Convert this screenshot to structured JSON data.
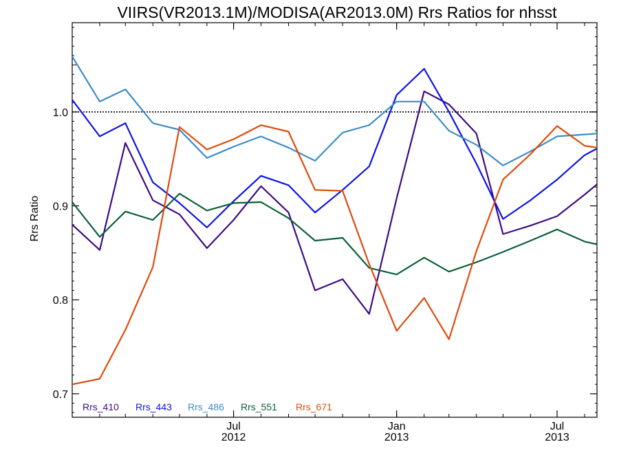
{
  "chart_data": {
    "type": "line",
    "title": "VIIRS(VR2013.1M)/MODISA(AR2013.0M)  Rrs Ratios for nhsst",
    "ylabel": "Rrs Ratio",
    "xlabel": "",
    "ylim": [
      0.675,
      1.095
    ],
    "xlim": [
      "2012-01-01",
      "2013-08-15"
    ],
    "reference_line": 1.0,
    "y_ticks": [
      "0.7",
      "0.8",
      "0.9",
      "1.0"
    ],
    "x_ticks": [
      {
        "date": "2012-07-01",
        "month": "Jul",
        "year": "2012"
      },
      {
        "date": "2013-01-01",
        "month": "Jan",
        "year": "2013"
      },
      {
        "date": "2013-07-01",
        "month": "Jul",
        "year": "2013"
      }
    ],
    "legend_position": "bottom-left",
    "x": [
      "2012-01-01",
      "2012-02-01",
      "2012-03-01",
      "2012-04-01",
      "2012-05-01",
      "2012-06-01",
      "2012-07-01",
      "2012-08-01",
      "2012-09-01",
      "2012-10-01",
      "2012-11-01",
      "2012-12-01",
      "2013-01-01",
      "2013-02-01",
      "2013-03-01",
      "2013-04-01",
      "2013-05-01",
      "2013-06-01",
      "2013-07-01",
      "2013-08-01",
      "2013-08-15"
    ],
    "series": [
      {
        "name": "Rrs_410",
        "color": "#3d0a82",
        "values": [
          0.88,
          0.853,
          0.967,
          0.906,
          0.891,
          0.855,
          0.885,
          0.921,
          0.893,
          0.81,
          0.822,
          0.785,
          0.908,
          1.022,
          1.008,
          0.977,
          0.87,
          0.879,
          0.889,
          0.912,
          0.923
        ]
      },
      {
        "name": "Rrs_443",
        "color": "#0a12e6",
        "values": [
          1.013,
          0.974,
          0.988,
          0.925,
          0.903,
          0.877,
          0.905,
          0.932,
          0.922,
          0.893,
          0.917,
          0.942,
          1.018,
          1.046,
          1.0,
          0.945,
          0.886,
          0.906,
          0.928,
          0.954,
          0.961
        ]
      },
      {
        "name": "Rrs_486",
        "color": "#3a8cc8",
        "values": [
          1.059,
          1.011,
          1.024,
          0.988,
          0.981,
          0.951,
          0.963,
          0.974,
          0.962,
          0.948,
          0.978,
          0.986,
          1.011,
          1.011,
          0.98,
          0.965,
          0.943,
          0.958,
          0.974,
          0.976,
          0.977
        ]
      },
      {
        "name": "Rrs_551",
        "color": "#0a5e36",
        "values": [
          0.904,
          0.867,
          0.894,
          0.885,
          0.913,
          0.895,
          0.903,
          0.904,
          0.887,
          0.863,
          0.866,
          0.834,
          0.827,
          0.845,
          0.83,
          0.84,
          0.851,
          0.863,
          0.875,
          0.862,
          0.859
        ]
      },
      {
        "name": "Rrs_671",
        "color": "#de4a0a",
        "values": [
          0.71,
          0.716,
          0.768,
          0.835,
          0.984,
          0.96,
          0.971,
          0.986,
          0.979,
          0.917,
          0.916,
          0.838,
          0.767,
          0.802,
          0.758,
          0.852,
          0.928,
          0.955,
          0.985,
          0.964,
          0.962
        ]
      }
    ]
  }
}
